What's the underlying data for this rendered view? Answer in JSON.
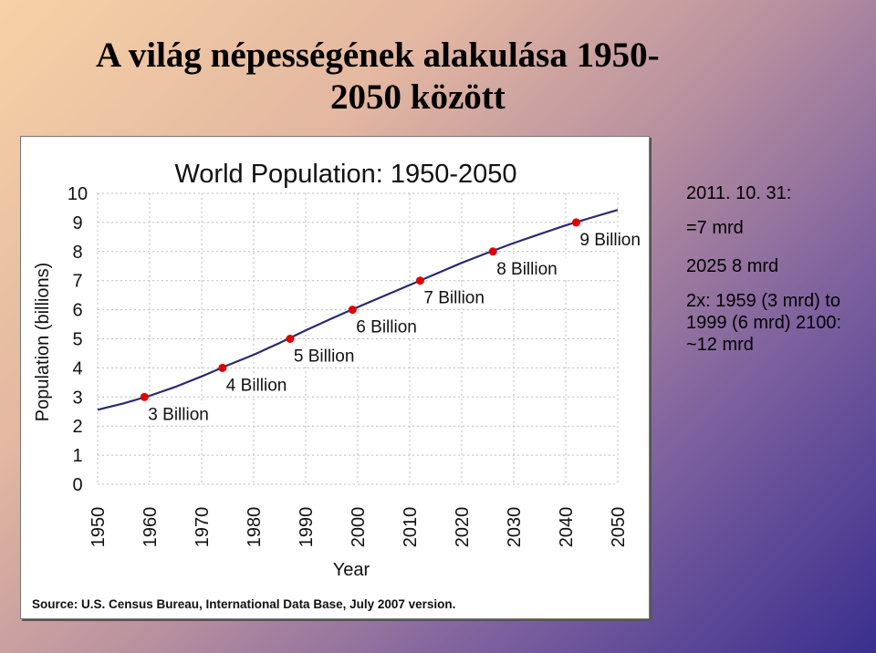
{
  "slide": {
    "title_line1": "A világ népességének alakulása 1950-",
    "title_line2": "2050 között"
  },
  "notes": [
    "2011. 10. 31:",
    "=7 mrd",
    "2025 8 mrd",
    "2x: 1959 (3 mrd) to 1999 (6 mrd) 2100: ~12 mrd"
  ],
  "chart_data": {
    "type": "line",
    "title": "World Population: 1950-2050",
    "xlabel": "Year",
    "ylabel": "Population (billions)",
    "xlim": [
      1950,
      2050
    ],
    "ylim": [
      0,
      10
    ],
    "x_ticks": [
      "1950",
      "1960",
      "1970",
      "1980",
      "1990",
      "2000",
      "2010",
      "2020",
      "2030",
      "2040",
      "2050"
    ],
    "y_ticks": [
      "0",
      "1",
      "2",
      "3",
      "4",
      "5",
      "6",
      "7",
      "8",
      "9",
      "10"
    ],
    "grid": true,
    "series": [
      {
        "x": [
          1950,
          1955,
          1960,
          1965,
          1970,
          1975,
          1980,
          1985,
          1990,
          1995,
          2000,
          2005,
          2010,
          2015,
          2020,
          2025,
          2030,
          2035,
          2040,
          2045,
          2050
        ],
        "y": [
          2.56,
          2.78,
          3.04,
          3.35,
          3.71,
          4.09,
          4.45,
          4.86,
          5.29,
          5.7,
          6.09,
          6.47,
          6.85,
          7.23,
          7.61,
          7.96,
          8.29,
          8.6,
          8.9,
          9.17,
          9.43
        ]
      }
    ],
    "milestones": [
      {
        "x": 1959,
        "y": 3,
        "label": "3 Billion"
      },
      {
        "x": 1974,
        "y": 4,
        "label": "4 Billion"
      },
      {
        "x": 1987,
        "y": 5,
        "label": "5 Billion"
      },
      {
        "x": 1999,
        "y": 6,
        "label": "6 Billion"
      },
      {
        "x": 2012,
        "y": 7,
        "label": "7 Billion"
      },
      {
        "x": 2026,
        "y": 8,
        "label": "8 Billion"
      },
      {
        "x": 2042,
        "y": 9,
        "label": "9 Billion"
      }
    ],
    "source": "Source: U.S. Census Bureau, International Data Base, July 2007 version.",
    "colors": {
      "line": "#2a2a6e",
      "marker": "#dd0000",
      "grid": "#bbbbbb",
      "text": "#111111"
    }
  }
}
